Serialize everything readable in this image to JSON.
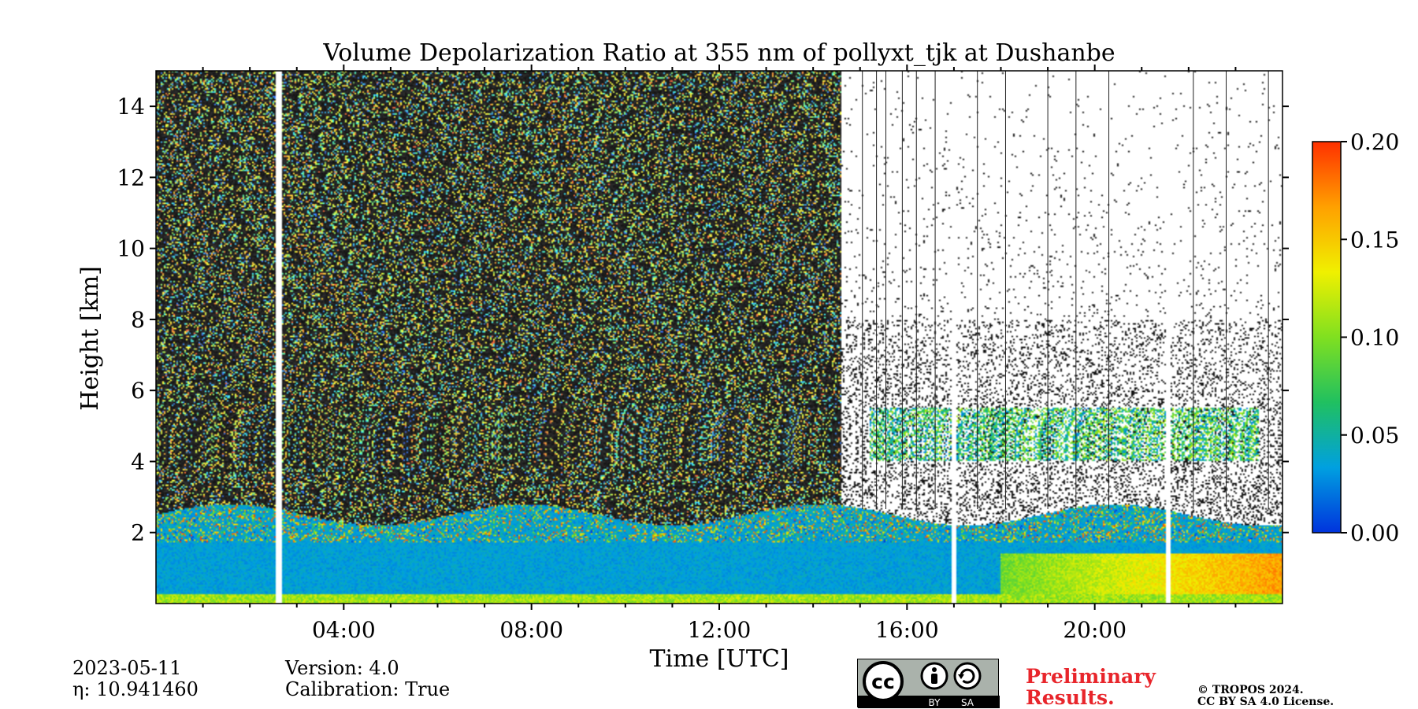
{
  "chart_data": {
    "type": "heatmap",
    "title": "Volume Depolarization Ratio at 355 nm of pollyxt_tjk at Dushanbe",
    "xlabel": "Time [UTC]",
    "ylabel": "Height [km]",
    "xlim_hours": [
      0,
      24
    ],
    "ylim_km": [
      0,
      15
    ],
    "x_tick_labels": [
      "04:00",
      "08:00",
      "12:00",
      "16:00",
      "20:00"
    ],
    "x_tick_hours": [
      4,
      8,
      12,
      16,
      20
    ],
    "x_minor_tick_hours": [
      1,
      2,
      3,
      5,
      6,
      7,
      9,
      10,
      11,
      13,
      14,
      15,
      17,
      18,
      19,
      21,
      22,
      23
    ],
    "y_tick_labels": [
      "2",
      "4",
      "6",
      "8",
      "10",
      "12",
      "14"
    ],
    "y_tick_km": [
      2,
      4,
      6,
      8,
      10,
      12,
      14
    ],
    "colorbar": {
      "min": 0.0,
      "max": 0.2,
      "tick_labels": [
        "0.00",
        "0.05",
        "0.10",
        "0.15",
        "0.20"
      ],
      "tick_values": [
        0.0,
        0.05,
        0.1,
        0.15,
        0.2
      ],
      "colors": [
        "#0033dd",
        "#00a0e0",
        "#20c060",
        "#80e020",
        "#f0f000",
        "#ffa000",
        "#ff3000"
      ]
    },
    "data_gaps_hours": [
      [
        2.55,
        2.7
      ],
      [
        16.95,
        17.05
      ],
      [
        21.5,
        21.6
      ]
    ],
    "noisy_region_hours": [
      0,
      14.6
    ],
    "cloud_layer": {
      "hours": [
        15.2,
        23.5
      ],
      "height_km": [
        4.0,
        5.5
      ]
    },
    "boundary_layer_top_km": 2.5
  },
  "footer": {
    "date": "2023-05-11",
    "eta": "η: 10.941460",
    "version": "Version: 4.0",
    "calibration": "Calibration: True",
    "license_cc": "cc",
    "license_by": "BY",
    "license_sa": "SA",
    "preliminary_line1": "Preliminary",
    "preliminary_line2": "Results.",
    "copyright_line1": "© TROPOS 2024.",
    "copyright_line2": "CC BY SA 4.0 License."
  }
}
